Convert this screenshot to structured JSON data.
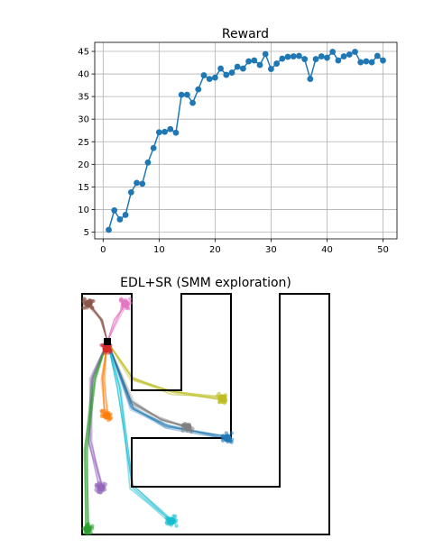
{
  "chart_data": [
    {
      "type": "line",
      "title": "Reward",
      "xlabel": "",
      "ylabel": "",
      "xlim": [
        -1.5,
        52.5
      ],
      "ylim": [
        3.5,
        47
      ],
      "grid": true,
      "xticks": [
        0,
        10,
        20,
        30,
        40,
        50
      ],
      "yticks": [
        5,
        10,
        15,
        20,
        25,
        30,
        35,
        40,
        45
      ],
      "series": [
        {
          "color": "#1f77b4",
          "marker": "circle",
          "x": [
            1,
            2,
            3,
            4,
            5,
            6,
            7,
            8,
            9,
            10,
            11,
            12,
            13,
            14,
            15,
            16,
            17,
            18,
            19,
            20,
            21,
            22,
            23,
            24,
            25,
            26,
            27,
            28,
            29,
            30,
            31,
            32,
            33,
            34,
            35,
            36,
            37,
            38,
            39,
            40,
            41,
            42,
            43,
            44,
            45,
            46,
            47,
            48,
            49,
            50
          ],
          "values": [
            5.5,
            9.8,
            7.8,
            8.8,
            13.8,
            15.9,
            15.7,
            20.4,
            23.6,
            27.1,
            27.2,
            27.8,
            27.0,
            35.4,
            35.4,
            33.6,
            36.6,
            39.7,
            38.9,
            39.2,
            41.2,
            39.8,
            40.3,
            41.6,
            41.2,
            42.8,
            43.0,
            42.0,
            44.4,
            41.1,
            42.3,
            43.4,
            43.8,
            43.9,
            44.0,
            43.3,
            38.9,
            43.3,
            43.9,
            43.6,
            44.9,
            43.0,
            43.9,
            44.3,
            44.9,
            42.6,
            42.8,
            42.6,
            44.0,
            43.0
          ]
        }
      ]
    },
    {
      "type": "scatter",
      "title": "EDL+SR (SMM exploration)",
      "axes_visible": false,
      "start_marker_color": "#000000",
      "skills": [
        {
          "color": "#8c564b",
          "endpoint": "upper-left corner of the left corridor"
        },
        {
          "color": "#e377c2",
          "endpoint": "upper-right corner of the left corridor"
        },
        {
          "color": "#d62728",
          "endpoint": "just below the start"
        },
        {
          "color": "#bcbd22",
          "endpoint": "second corridor, lower area"
        },
        {
          "color": "#7f7f7f",
          "endpoint": "second corridor, near the bottom"
        },
        {
          "color": "#1f77b4",
          "endpoint": "second corridor, bottom-right"
        },
        {
          "color": "#ff7f0e",
          "endpoint": "left corridor, middle"
        },
        {
          "color": "#9467bd",
          "endpoint": "left corridor, lower section"
        },
        {
          "color": "#2ca02c",
          "endpoint": "bottom-left corner"
        },
        {
          "color": "#17becf",
          "endpoint": "bottom corridor"
        }
      ]
    }
  ]
}
